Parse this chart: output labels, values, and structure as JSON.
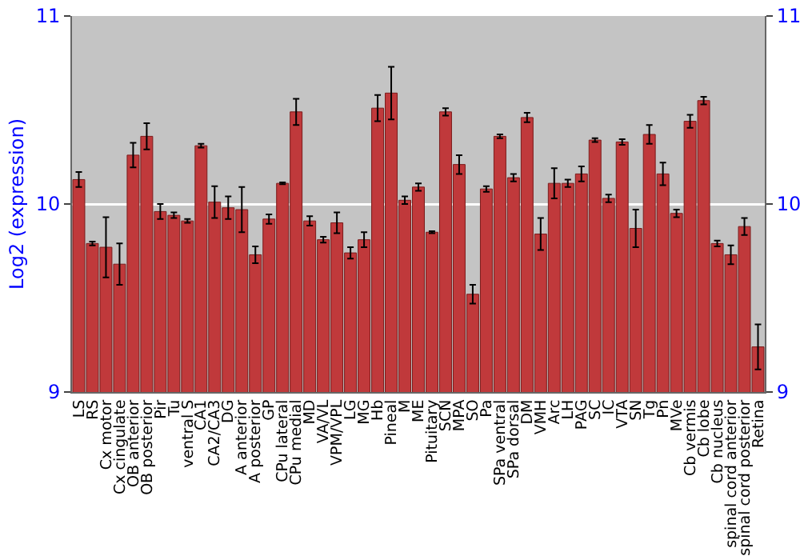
{
  "chart_data": {
    "type": "bar",
    "ylabel": "Log2 (expression)",
    "categories": [
      "LS",
      "RS",
      "Cx motor",
      "Cx cingulate",
      "OB anterior",
      "OB posterior",
      "Pir",
      "Tu",
      "ventral S",
      "CA1",
      "CA2/CA3",
      "DG",
      "A anterior",
      "A posterior",
      "GP",
      "CPu lateral",
      "CPu medial",
      "MD",
      "VA/VL",
      "VPM/VPL",
      "LG",
      "MG",
      "Hb",
      "Pineal",
      "M",
      "ME",
      "Pituitary",
      "SCN",
      "MPA",
      "SO",
      "Pa",
      "SPa ventral",
      "SPa dorsal",
      "DM",
      "VMH",
      "Arc",
      "LH",
      "PAG",
      "SC",
      "IC",
      "VTA",
      "SN",
      "Tg",
      "Pn",
      "MVe",
      "Cb vermis",
      "Cb lobe",
      "Cb nucleus",
      "spinal cord anterior",
      "spinal cord posterior",
      "Retina"
    ],
    "values": [
      10.13,
      9.79,
      9.77,
      9.68,
      10.26,
      10.36,
      9.96,
      9.94,
      9.91,
      10.31,
      10.01,
      9.98,
      9.97,
      9.73,
      9.92,
      10.11,
      10.49,
      9.91,
      9.81,
      9.9,
      9.74,
      9.81,
      10.51,
      10.59,
      10.02,
      10.09,
      9.85,
      10.49,
      10.21,
      9.52,
      10.08,
      10.36,
      10.14,
      10.46,
      9.84,
      10.11,
      10.11,
      10.16,
      10.34,
      10.03,
      10.33,
      9.87,
      10.37,
      10.16,
      9.95,
      10.44,
      10.55,
      9.79,
      9.73,
      9.88,
      9.24
    ],
    "errors": [
      0.04,
      0.01,
      0.16,
      0.11,
      0.065,
      0.07,
      0.04,
      0.015,
      0.01,
      0.01,
      0.085,
      0.06,
      0.12,
      0.045,
      0.025,
      0.005,
      0.07,
      0.025,
      0.015,
      0.055,
      0.03,
      0.04,
      0.07,
      0.14,
      0.02,
      0.02,
      0.005,
      0.02,
      0.05,
      0.05,
      0.015,
      0.01,
      0.02,
      0.025,
      0.085,
      0.08,
      0.02,
      0.04,
      0.01,
      0.02,
      0.015,
      0.1,
      0.05,
      0.06,
      0.02,
      0.035,
      0.02,
      0.015,
      0.05,
      0.045,
      0.12
    ],
    "color": "#c0393b",
    "ylim": [
      9,
      11
    ],
    "yticks": [
      9,
      10,
      11
    ],
    "y2lim": [
      9,
      11
    ],
    "y2ticks": [
      9,
      10,
      11
    ],
    "grid": "y"
  }
}
